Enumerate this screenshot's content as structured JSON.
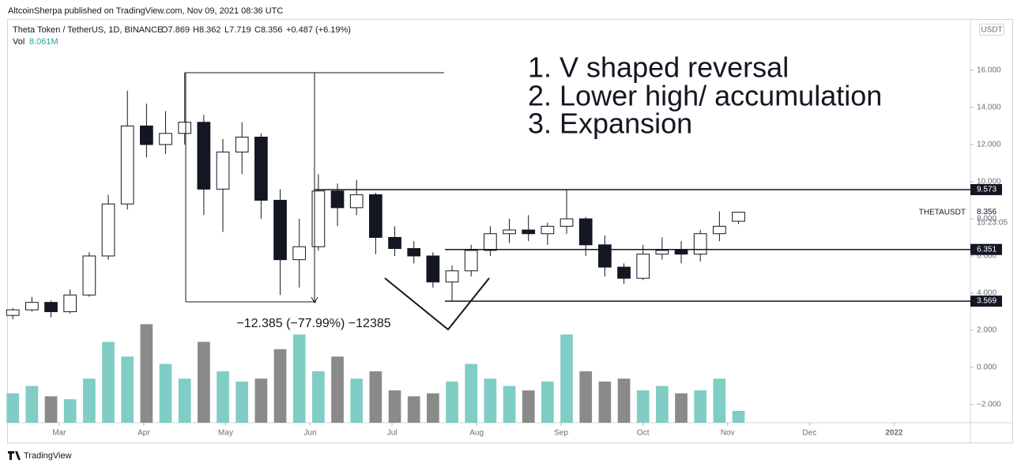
{
  "header": {
    "publisher": "AltcoinSherpa published on TradingView.com, Nov 09, 2021 08:36 UTC",
    "instrument": "Theta Token / TetherUS, 1D, BINANCE",
    "ohlc": [
      "O7.869",
      "H8.362",
      "L7.719",
      "C8.356",
      "+0.487 (+6.19%)"
    ],
    "vol_label": "Vol",
    "vol_value": "8.061M"
  },
  "chart_data": {
    "type": "candlestick",
    "x": [
      42,
      49,
      56,
      63,
      70,
      77,
      84,
      91,
      98,
      105,
      112,
      119,
      126,
      133,
      140,
      147,
      154,
      161,
      168,
      175,
      182,
      189,
      196,
      203,
      210,
      217,
      224,
      231,
      238,
      245,
      252,
      259,
      266,
      273,
      280,
      287,
      294,
      301,
      308
    ],
    "open": [
      2.8,
      3.1,
      3.5,
      3.0,
      3.9,
      6.0,
      8.8,
      13.0,
      12.0,
      12.6,
      13.2,
      9.6,
      11.6,
      12.4,
      9.0,
      5.8,
      6.5,
      9.5,
      8.6,
      9.3,
      7.0,
      6.4,
      6.0,
      4.6,
      5.2,
      6.3,
      7.2,
      7.4,
      7.2,
      7.6,
      8.0,
      6.6,
      5.4,
      4.8,
      6.1,
      6.3,
      6.1,
      7.2,
      7.869
    ],
    "high": [
      3.2,
      3.8,
      3.6,
      4.2,
      6.2,
      9.3,
      14.9,
      14.2,
      13.8,
      15.9,
      13.6,
      12.3,
      13.2,
      12.6,
      9.6,
      8.0,
      10.4,
      9.9,
      10.1,
      9.4,
      7.6,
      6.8,
      6.2,
      5.5,
      6.6,
      7.6,
      8.0,
      8.2,
      7.8,
      9.57,
      8.1,
      7.1,
      5.6,
      6.6,
      7.0,
      6.8,
      7.4,
      8.4,
      8.362
    ],
    "low": [
      2.6,
      3.0,
      2.7,
      2.9,
      3.8,
      5.8,
      8.5,
      11.3,
      11.5,
      12.0,
      8.2,
      7.3,
      10.4,
      8.0,
      3.9,
      4.3,
      6.3,
      7.6,
      8.2,
      6.1,
      6.0,
      5.6,
      4.3,
      3.57,
      4.9,
      6.0,
      6.7,
      6.8,
      6.6,
      7.2,
      6.0,
      4.9,
      4.5,
      4.7,
      5.8,
      5.6,
      5.7,
      6.8,
      7.719
    ],
    "close": [
      3.1,
      3.5,
      3.0,
      3.9,
      6.0,
      8.8,
      13.0,
      12.0,
      12.6,
      13.2,
      9.6,
      11.6,
      12.4,
      9.0,
      5.8,
      6.5,
      9.5,
      8.6,
      9.3,
      7.0,
      6.4,
      6.0,
      4.6,
      5.2,
      6.3,
      7.2,
      7.4,
      7.2,
      7.6,
      8.0,
      6.6,
      5.4,
      4.8,
      6.1,
      6.3,
      6.1,
      7.2,
      7.6,
      8.356
    ],
    "volume": [
      20,
      25,
      18,
      16,
      30,
      55,
      45,
      67,
      40,
      30,
      55,
      35,
      28,
      30,
      50,
      60,
      35,
      45,
      30,
      35,
      22,
      18,
      20,
      28,
      40,
      30,
      25,
      22,
      28,
      60,
      35,
      28,
      30,
      22,
      25,
      20,
      22,
      30,
      8.061
    ],
    "xlim": [
      40.2,
      393
    ],
    "xticks": [
      {
        "value": 59,
        "label": "Mar"
      },
      {
        "value": 90,
        "label": "Apr"
      },
      {
        "value": 120,
        "label": "May"
      },
      {
        "value": 151,
        "label": "Jun"
      },
      {
        "value": 181,
        "label": "Jul"
      },
      {
        "value": 212,
        "label": "Aug"
      },
      {
        "value": 243,
        "label": "Sep"
      },
      {
        "value": 273,
        "label": "Oct"
      },
      {
        "value": 304,
        "label": "Nov"
      },
      {
        "value": 334,
        "label": "Dec"
      },
      {
        "value": 365,
        "label": "2022"
      }
    ],
    "ylim": [
      -2.98,
      18.72
    ],
    "yticks": [
      {
        "value": -2,
        "label": "−2.000"
      },
      {
        "value": 0,
        "label": "0.000"
      },
      {
        "value": 2,
        "label": "2.000"
      },
      {
        "value": 4,
        "label": "4.000"
      },
      {
        "value": 6,
        "label": "6.000"
      },
      {
        "value": 8,
        "label": "8.000"
      },
      {
        "value": 10,
        "label": "10.000"
      },
      {
        "value": 12,
        "label": "12.000"
      },
      {
        "value": 14,
        "label": "14.000"
      },
      {
        "value": 16,
        "label": "16.000"
      }
    ],
    "volume_lim": [
      0,
      274
    ],
    "up_color": "#ffffff",
    "down_color": "#131722",
    "volume_up_color": "#7fcdc5",
    "volume_down_color": "#8a8a8a",
    "levels": [
      9.573,
      6.351,
      3.569
    ],
    "symbol": "THETAUSDT",
    "countdown": "15:23:05",
    "currency": "USDT",
    "measure": "−12.385 (−77.99%) −12385",
    "notes": [
      "1. V shaped reversal",
      "2. Lower high/ accumulation",
      "3. Expansion"
    ]
  },
  "footer": {
    "brand": "TradingView"
  }
}
